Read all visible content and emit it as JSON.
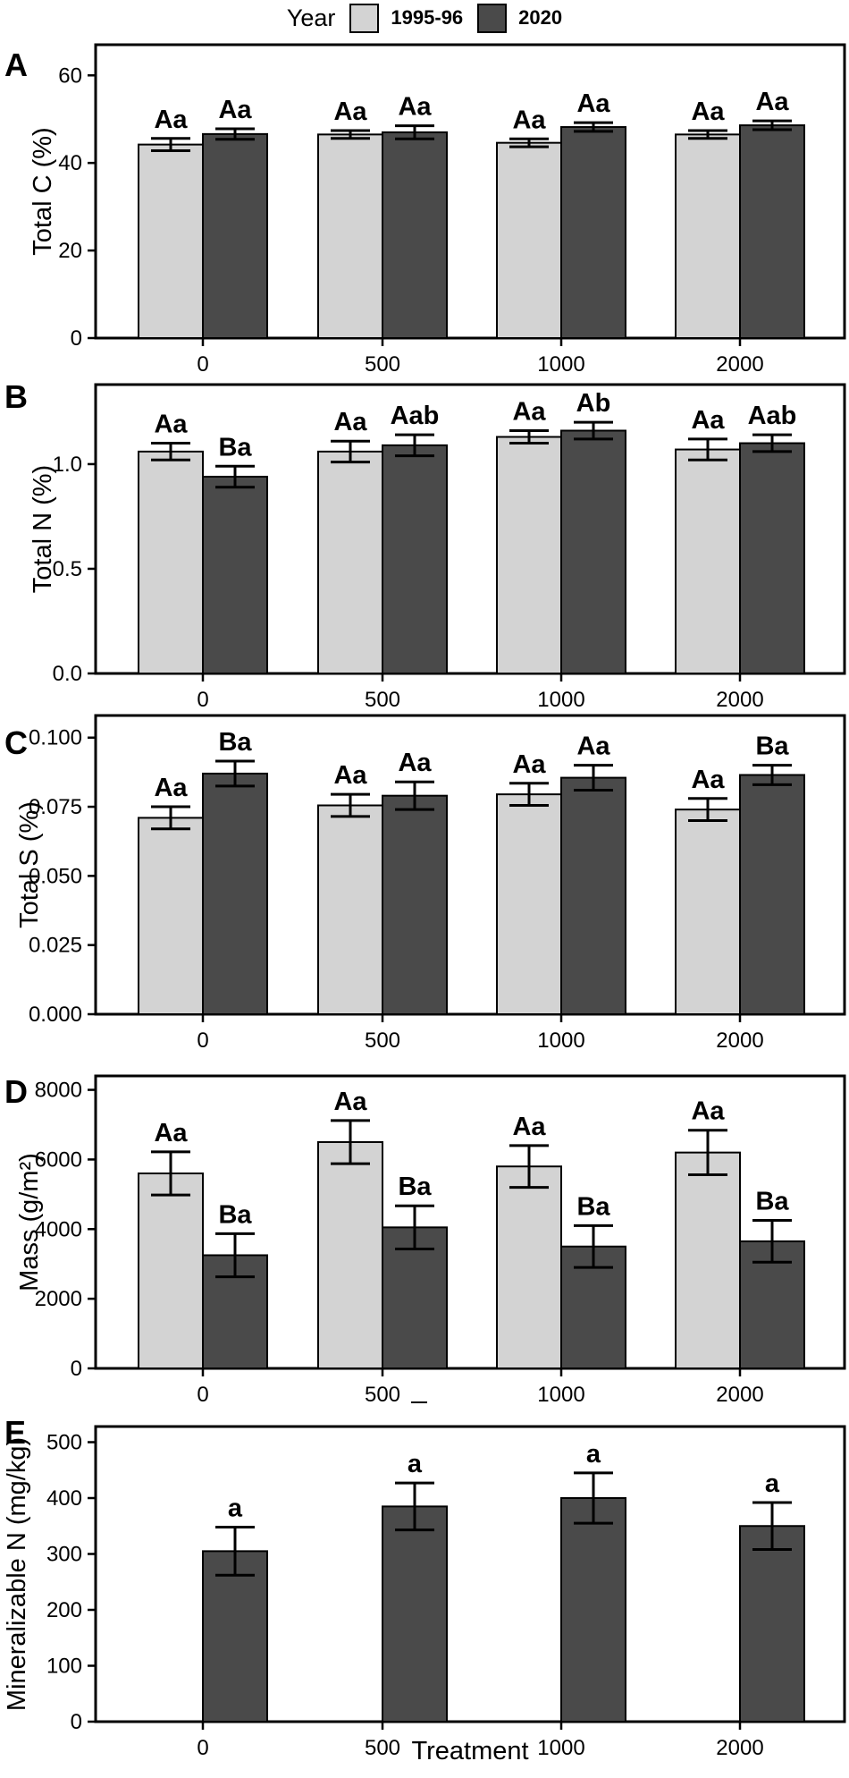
{
  "legend": {
    "title": "Year",
    "items": [
      {
        "label": "1995-96",
        "color_key": "light"
      },
      {
        "label": "2020",
        "color_key": "dark"
      }
    ]
  },
  "xlabel": "Treatment",
  "colors": {
    "light": "#d3d3d3",
    "dark": "#4a4a4a",
    "stroke": "#000000"
  },
  "chart_data": [
    {
      "panel": "A",
      "type": "bar",
      "ylabel": "Total C (%)",
      "ylim": [
        0,
        67
      ],
      "yticks": [
        0,
        20,
        40,
        60
      ],
      "ytick_labels": [
        "0",
        "20",
        "40",
        "60"
      ],
      "categories": [
        "0",
        "500",
        "1000",
        "2000"
      ],
      "series": [
        {
          "name": "1995-96",
          "color_key": "light",
          "values": [
            44.2,
            46.5,
            44.6,
            46.5
          ],
          "errors": [
            1.4,
            0.9,
            0.9,
            0.9
          ],
          "labels": [
            "Aa",
            "Aa",
            "Aa",
            "Aa"
          ]
        },
        {
          "name": "2020",
          "color_key": "dark",
          "values": [
            46.6,
            47.0,
            48.2,
            48.6
          ],
          "errors": [
            1.2,
            1.5,
            1.0,
            1.0
          ],
          "labels": [
            "Aa",
            "Aa",
            "Aa",
            "Aa"
          ]
        }
      ]
    },
    {
      "panel": "B",
      "type": "bar",
      "ylabel": "Total N (%)",
      "ylim": [
        0,
        1.38
      ],
      "yticks": [
        0,
        0.5,
        1.0
      ],
      "ytick_labels": [
        "0.0",
        "0.5",
        "1.0"
      ],
      "categories": [
        "0",
        "500",
        "1000",
        "2000"
      ],
      "series": [
        {
          "name": "1995-96",
          "color_key": "light",
          "values": [
            1.06,
            1.06,
            1.13,
            1.07
          ],
          "errors": [
            0.04,
            0.05,
            0.03,
            0.05
          ],
          "labels": [
            "Aa",
            "Aa",
            "Aa",
            "Aa"
          ]
        },
        {
          "name": "2020",
          "color_key": "dark",
          "values": [
            0.94,
            1.09,
            1.16,
            1.1
          ],
          "errors": [
            0.05,
            0.05,
            0.04,
            0.04
          ],
          "labels": [
            "Ba",
            "Aab",
            "Ab",
            "Aab"
          ]
        }
      ]
    },
    {
      "panel": "C",
      "type": "bar",
      "ylabel": "Total S (%)",
      "ylim": [
        0,
        0.108
      ],
      "yticks": [
        0,
        0.025,
        0.05,
        0.075,
        0.1
      ],
      "ytick_labels": [
        "0.000",
        "0.025",
        "0.050",
        "0.075",
        "0.100"
      ],
      "categories": [
        "0",
        "500",
        "1000",
        "2000"
      ],
      "series": [
        {
          "name": "1995-96",
          "color_key": "light",
          "values": [
            0.071,
            0.0755,
            0.0795,
            0.074
          ],
          "errors": [
            0.004,
            0.004,
            0.004,
            0.004
          ],
          "labels": [
            "Aa",
            "Aa",
            "Aa",
            "Aa"
          ]
        },
        {
          "name": "2020",
          "color_key": "dark",
          "values": [
            0.087,
            0.079,
            0.0855,
            0.0865
          ],
          "errors": [
            0.0045,
            0.005,
            0.0045,
            0.0035
          ],
          "labels": [
            "Ba",
            "Aa",
            "Aa",
            "Ba"
          ]
        }
      ]
    },
    {
      "panel": "D",
      "type": "bar",
      "ylabel": "Mass (g/m²)",
      "ylim": [
        0,
        8400
      ],
      "yticks": [
        0,
        2000,
        4000,
        6000,
        8000
      ],
      "ytick_labels": [
        "0",
        "2000",
        "4000",
        "6000",
        "8000"
      ],
      "categories": [
        "0",
        "500",
        "1000",
        "2000"
      ],
      "series": [
        {
          "name": "1995-96",
          "color_key": "light",
          "values": [
            5600,
            6500,
            5800,
            6200
          ],
          "errors": [
            620,
            620,
            600,
            640
          ],
          "labels": [
            "Aa",
            "Aa",
            "Aa",
            "Aa"
          ]
        },
        {
          "name": "2020",
          "color_key": "dark",
          "values": [
            3250,
            4050,
            3500,
            3650
          ],
          "errors": [
            620,
            620,
            600,
            600
          ],
          "labels": [
            "Ba",
            "Ba",
            "Ba",
            "Ba"
          ]
        }
      ]
    },
    {
      "panel": "E",
      "type": "bar",
      "ylabel": "Mineralizable N (mg/kg)",
      "ylim": [
        0,
        528
      ],
      "yticks": [
        0,
        100,
        200,
        300,
        400,
        500
      ],
      "ytick_labels": [
        "0",
        "100",
        "200",
        "300",
        "400",
        "500"
      ],
      "categories": [
        "0",
        "500",
        "1000",
        "2000"
      ],
      "series": [
        {
          "name": "2020",
          "color_key": "dark",
          "values": [
            305,
            385,
            400,
            350
          ],
          "errors": [
            43,
            42,
            45,
            42
          ],
          "labels": [
            "a",
            "a",
            "a",
            "a"
          ]
        }
      ]
    }
  ]
}
